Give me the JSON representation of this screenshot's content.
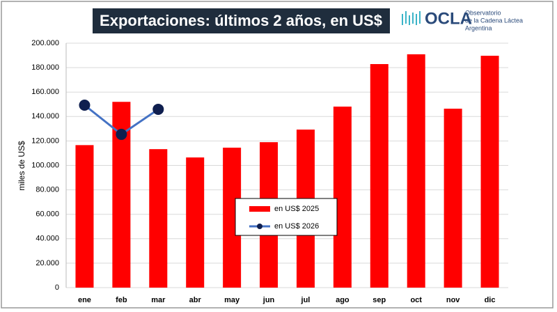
{
  "logo": {
    "name": "OCLA",
    "lines": [
      "Observatorio",
      "de la Cadena Láctea",
      "Argentina"
    ]
  },
  "chart_data": {
    "type": "bar",
    "title": "Exportaciones: últimos 2 años, en US$",
    "y_label": "miles de US$",
    "categories": [
      "ene",
      "feb",
      "mar",
      "abr",
      "may",
      "jun",
      "jul",
      "ago",
      "sep",
      "oct",
      "nov",
      "dic"
    ],
    "series": [
      {
        "name": "en US$ 2025",
        "type": "bar",
        "color": "#ff0000",
        "values": [
          116600,
          152000,
          113300,
          106500,
          114500,
          119000,
          129300,
          148100,
          182900,
          190900,
          146400,
          189700
        ]
      },
      {
        "name": "en US$ 2026",
        "type": "line",
        "color": "#4472c4",
        "marker_color": "#0f1f4f",
        "values": [
          149300,
          125400,
          145900,
          null,
          null,
          null,
          null,
          null,
          null,
          null,
          null,
          null
        ]
      }
    ],
    "ylim": [
      0,
      200000
    ],
    "yticks": [
      0,
      {
        "value": 20000,
        "label": "20.000"
      },
      {
        "value": 40000,
        "label": "40.000"
      },
      {
        "value": 60000,
        "label": "60.000"
      },
      {
        "value": 80000,
        "label": "80.000"
      },
      {
        "value": 100000,
        "label": "100.000"
      },
      {
        "value": 120000,
        "label": "120.000"
      },
      {
        "value": 140000,
        "label": "140.000"
      },
      {
        "value": 160000,
        "label": "160.000"
      },
      {
        "value": 180000,
        "label": "180.000"
      },
      {
        "value": 200000,
        "label": "200.000"
      }
    ],
    "grid": true,
    "legend": "center"
  }
}
